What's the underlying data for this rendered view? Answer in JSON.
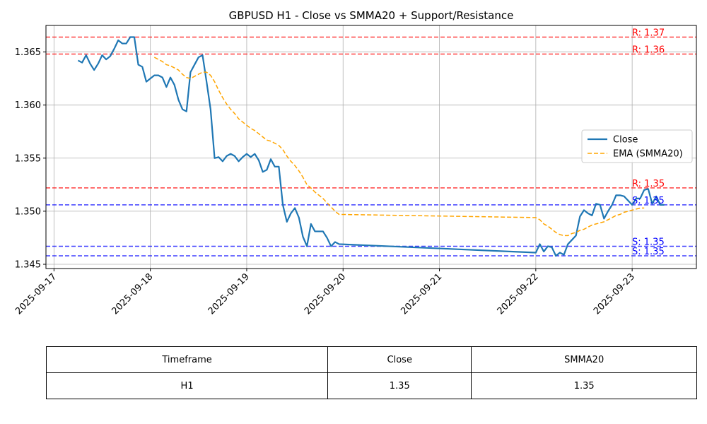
{
  "chart_data": {
    "type": "line",
    "title": "GBPUSD H1 - Close vs SMMA20 + Support/Resistance",
    "xlabel": "",
    "ylabel": "",
    "x_range": [
      "2025-09-16T22:00",
      "2025-09-23T16:00"
    ],
    "ylim": [
      1.3446,
      1.3675
    ],
    "x_ticks": [
      "2025-09-17",
      "2025-09-18",
      "2025-09-19",
      "2025-09-20",
      "2025-09-21",
      "2025-09-22",
      "2025-09-23"
    ],
    "y_ticks": [
      1.345,
      1.35,
      1.355,
      1.36,
      1.365
    ],
    "y_tick_labels": [
      "1.345",
      "1.350",
      "1.355",
      "1.360",
      "1.365"
    ],
    "grid": true,
    "legend": {
      "position": "center-right",
      "entries": [
        "Close",
        "EMA (SMMA20)"
      ]
    },
    "series": [
      {
        "name": "Close",
        "color": "#1f77b4",
        "style": "solid",
        "x": [
          "2025-09-17T06:00",
          "2025-09-17T07:00",
          "2025-09-17T08:00",
          "2025-09-17T09:00",
          "2025-09-17T10:00",
          "2025-09-17T11:00",
          "2025-09-17T12:00",
          "2025-09-17T13:00",
          "2025-09-17T14:00",
          "2025-09-17T15:00",
          "2025-09-17T16:00",
          "2025-09-17T17:00",
          "2025-09-17T18:00",
          "2025-09-17T19:00",
          "2025-09-17T20:00",
          "2025-09-17T21:00",
          "2025-09-17T22:00",
          "2025-09-17T23:00",
          "2025-09-18T00:00",
          "2025-09-18T01:00",
          "2025-09-18T02:00",
          "2025-09-18T03:00",
          "2025-09-18T04:00",
          "2025-09-18T05:00",
          "2025-09-18T06:00",
          "2025-09-18T07:00",
          "2025-09-18T08:00",
          "2025-09-18T09:00",
          "2025-09-18T10:00",
          "2025-09-18T11:00",
          "2025-09-18T12:00",
          "2025-09-18T13:00",
          "2025-09-18T14:00",
          "2025-09-18T15:00",
          "2025-09-18T16:00",
          "2025-09-18T17:00",
          "2025-09-18T18:00",
          "2025-09-18T19:00",
          "2025-09-18T20:00",
          "2025-09-18T21:00",
          "2025-09-18T22:00",
          "2025-09-18T23:00",
          "2025-09-19T00:00",
          "2025-09-19T01:00",
          "2025-09-19T02:00",
          "2025-09-19T03:00",
          "2025-09-19T04:00",
          "2025-09-19T05:00",
          "2025-09-19T06:00",
          "2025-09-19T07:00",
          "2025-09-19T08:00",
          "2025-09-19T09:00",
          "2025-09-19T10:00",
          "2025-09-19T11:00",
          "2025-09-19T12:00",
          "2025-09-19T13:00",
          "2025-09-19T14:00",
          "2025-09-19T15:00",
          "2025-09-19T16:00",
          "2025-09-19T17:00",
          "2025-09-19T18:00",
          "2025-09-19T19:00",
          "2025-09-19T20:00",
          "2025-09-19T21:00",
          "2025-09-19T22:00",
          "2025-09-19T23:00",
          "2025-09-22T00:00",
          "2025-09-22T01:00",
          "2025-09-22T02:00",
          "2025-09-22T03:00",
          "2025-09-22T04:00",
          "2025-09-22T05:00",
          "2025-09-22T06:00",
          "2025-09-22T07:00",
          "2025-09-22T08:00",
          "2025-09-22T09:00",
          "2025-09-22T10:00",
          "2025-09-22T11:00",
          "2025-09-22T12:00",
          "2025-09-22T13:00",
          "2025-09-22T14:00",
          "2025-09-22T15:00",
          "2025-09-22T16:00",
          "2025-09-22T17:00",
          "2025-09-22T18:00",
          "2025-09-22T19:00",
          "2025-09-22T20:00",
          "2025-09-22T21:00",
          "2025-09-22T22:00",
          "2025-09-22T23:00",
          "2025-09-23T00:00",
          "2025-09-23T01:00",
          "2025-09-23T02:00",
          "2025-09-23T03:00",
          "2025-09-23T04:00",
          "2025-09-23T05:00",
          "2025-09-23T06:00",
          "2025-09-23T07:00",
          "2025-09-23T08:00"
        ],
        "values": [
          1.3642,
          1.364,
          1.3647,
          1.3639,
          1.3633,
          1.3639,
          1.3647,
          1.3643,
          1.3646,
          1.3653,
          1.3661,
          1.3658,
          1.3658,
          1.3664,
          1.3664,
          1.3638,
          1.3636,
          1.3622,
          1.3625,
          1.3628,
          1.3628,
          1.3626,
          1.3617,
          1.3626,
          1.3619,
          1.3605,
          1.3596,
          1.3594,
          1.3631,
          1.3638,
          1.3645,
          1.3647,
          1.3622,
          1.3596,
          1.355,
          1.3551,
          1.3547,
          1.3552,
          1.3554,
          1.3552,
          1.3547,
          1.3551,
          1.3554,
          1.3551,
          1.3554,
          1.3548,
          1.3537,
          1.3539,
          1.3549,
          1.3542,
          1.3542,
          1.3506,
          1.349,
          1.3498,
          1.3503,
          1.3494,
          1.3476,
          1.3467,
          1.3488,
          1.3481,
          1.3481,
          1.3481,
          1.3475,
          1.3467,
          1.3471,
          1.3469,
          1.3461,
          1.3469,
          1.3462,
          1.3467,
          1.3466,
          1.3458,
          1.3461,
          1.3459,
          1.3469,
          1.3473,
          1.3477,
          1.3495,
          1.3501,
          1.3498,
          1.3496,
          1.3507,
          1.3506,
          1.3493,
          1.35,
          1.3506,
          1.3515,
          1.3515,
          1.3514,
          1.351,
          1.3506,
          1.3512,
          1.3512,
          1.352,
          1.3521,
          1.3507,
          1.3514,
          1.3506,
          1.3506
        ]
      },
      {
        "name": "EMA (SMMA20)",
        "color": "#ffa500",
        "style": "dashed",
        "x": [
          "2025-09-18T01:00",
          "2025-09-18T02:00",
          "2025-09-18T03:00",
          "2025-09-18T04:00",
          "2025-09-18T05:00",
          "2025-09-18T06:00",
          "2025-09-18T07:00",
          "2025-09-18T08:00",
          "2025-09-18T09:00",
          "2025-09-18T10:00",
          "2025-09-18T11:00",
          "2025-09-18T12:00",
          "2025-09-18T13:00",
          "2025-09-18T14:00",
          "2025-09-18T15:00",
          "2025-09-18T16:00",
          "2025-09-18T17:00",
          "2025-09-18T18:00",
          "2025-09-18T19:00",
          "2025-09-18T20:00",
          "2025-09-18T21:00",
          "2025-09-18T22:00",
          "2025-09-18T23:00",
          "2025-09-19T00:00",
          "2025-09-19T01:00",
          "2025-09-19T02:00",
          "2025-09-19T03:00",
          "2025-09-19T04:00",
          "2025-09-19T05:00",
          "2025-09-19T06:00",
          "2025-09-19T07:00",
          "2025-09-19T08:00",
          "2025-09-19T09:00",
          "2025-09-19T10:00",
          "2025-09-19T11:00",
          "2025-09-19T12:00",
          "2025-09-19T13:00",
          "2025-09-19T14:00",
          "2025-09-19T15:00",
          "2025-09-19T16:00",
          "2025-09-19T17:00",
          "2025-09-19T18:00",
          "2025-09-19T19:00",
          "2025-09-19T20:00",
          "2025-09-19T21:00",
          "2025-09-19T22:00",
          "2025-09-19T23:00",
          "2025-09-22T00:00",
          "2025-09-22T01:00",
          "2025-09-22T02:00",
          "2025-09-22T03:00",
          "2025-09-22T04:00",
          "2025-09-22T05:00",
          "2025-09-22T06:00",
          "2025-09-22T07:00",
          "2025-09-22T08:00",
          "2025-09-22T09:00",
          "2025-09-22T10:00",
          "2025-09-22T11:00",
          "2025-09-22T12:00",
          "2025-09-22T13:00",
          "2025-09-22T14:00",
          "2025-09-22T15:00",
          "2025-09-22T16:00",
          "2025-09-22T17:00",
          "2025-09-22T18:00",
          "2025-09-22T19:00",
          "2025-09-22T20:00",
          "2025-09-22T21:00",
          "2025-09-22T22:00",
          "2025-09-22T23:00",
          "2025-09-23T00:00",
          "2025-09-23T01:00",
          "2025-09-23T02:00",
          "2025-09-23T03:00"
        ],
        "values": [
          1.3645,
          1.3643,
          1.3641,
          1.3638,
          1.3637,
          1.3635,
          1.3633,
          1.3629,
          1.3626,
          1.3625,
          1.3627,
          1.3629,
          1.3631,
          1.3631,
          1.3628,
          1.3622,
          1.3614,
          1.3607,
          1.3601,
          1.3596,
          1.3592,
          1.3587,
          1.3584,
          1.3581,
          1.3578,
          1.3576,
          1.3573,
          1.357,
          1.3567,
          1.3566,
          1.3564,
          1.3562,
          1.3558,
          1.3552,
          1.3547,
          1.3543,
          1.3538,
          1.3532,
          1.3525,
          1.3522,
          1.3518,
          1.3515,
          1.3512,
          1.3508,
          1.3504,
          1.35,
          1.3497,
          1.3494,
          1.3492,
          1.3488,
          1.3486,
          1.3483,
          1.348,
          1.3478,
          1.3477,
          1.3477,
          1.3479,
          1.348,
          1.3482,
          1.3483,
          1.3485,
          1.3487,
          1.3488,
          1.3489,
          1.349,
          1.3492,
          1.3494,
          1.3496,
          1.3497,
          1.3499,
          1.35,
          1.3501,
          1.3502,
          1.3503,
          1.3503
        ]
      }
    ],
    "levels": [
      {
        "kind": "resistance",
        "value": 1.3664,
        "label": "R: 1.37",
        "color": "#ff0000"
      },
      {
        "kind": "resistance",
        "value": 1.3648,
        "label": "R: 1.36",
        "color": "#ff0000"
      },
      {
        "kind": "resistance",
        "value": 1.3522,
        "label": "R: 1.35",
        "color": "#ff0000"
      },
      {
        "kind": "support",
        "value": 1.3506,
        "label": "S: 1.35",
        "color": "#0000ff"
      },
      {
        "kind": "support",
        "value": 1.3467,
        "label": "S: 1.35",
        "color": "#0000ff"
      },
      {
        "kind": "support",
        "value": 1.3458,
        "label": "S: 1.35",
        "color": "#0000ff"
      }
    ]
  },
  "table": {
    "headers": [
      "Timeframe",
      "Close",
      "SMMA20"
    ],
    "row": [
      "H1",
      "1.35",
      "1.35"
    ]
  }
}
